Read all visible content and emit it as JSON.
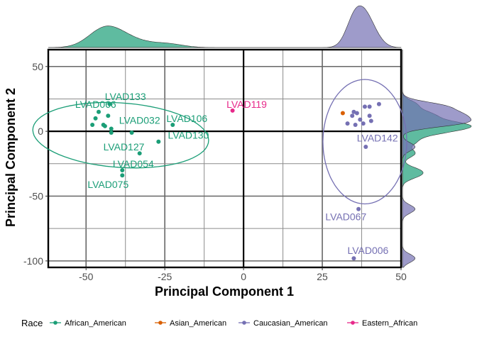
{
  "chart_data": {
    "type": "scatter",
    "xlabel": "Principal Component 1",
    "ylabel": "Principal Component 2",
    "xlim": [
      -62,
      50
    ],
    "ylim": [
      -105,
      63
    ],
    "xticks": [
      -50,
      -25,
      0,
      25,
      50
    ],
    "yticks": [
      50,
      0,
      -50,
      -100
    ],
    "xtick_labels": [
      "-50",
      "-25",
      "0",
      "25",
      "50"
    ],
    "ytick_labels": [
      "50",
      "0",
      "-50",
      "-100"
    ],
    "grid": true,
    "legend_position": "bottom",
    "legend_title": "Race",
    "series": [
      {
        "name": "African_American",
        "color": "#1B9E77",
        "points": [
          {
            "x": -48,
            "y": 5
          },
          {
            "x": -47,
            "y": 10
          },
          {
            "x": -46,
            "y": 15
          },
          {
            "x": -44.5,
            "y": 5
          },
          {
            "x": -44,
            "y": 4
          },
          {
            "x": -43,
            "y": 12
          },
          {
            "x": -42.5,
            "y": 21
          },
          {
            "x": -42,
            "y": 2
          },
          {
            "x": -42,
            "y": -1
          },
          {
            "x": -35.5,
            "y": -1
          },
          {
            "x": -33,
            "y": -17
          },
          {
            "x": -38.5,
            "y": -30
          },
          {
            "x": -38.5,
            "y": -34
          },
          {
            "x": -27,
            "y": -8
          },
          {
            "x": -22.5,
            "y": 5
          }
        ],
        "labels": [
          "LVAD066",
          "LVAD133",
          "LVAD032",
          "LVAD106",
          "LVAD130",
          "LVAD127",
          "LVAD054",
          "LVAD075"
        ]
      },
      {
        "name": "Asian_American",
        "color": "#D95F02",
        "points": [
          {
            "x": 31.5,
            "y": 14
          }
        ],
        "labels": []
      },
      {
        "name": "Caucasian_American",
        "color": "#7570B3",
        "points": [
          {
            "x": 33,
            "y": 6
          },
          {
            "x": 34.5,
            "y": 12
          },
          {
            "x": 35,
            "y": 15
          },
          {
            "x": 35.5,
            "y": 5
          },
          {
            "x": 36,
            "y": 14
          },
          {
            "x": 37,
            "y": 9
          },
          {
            "x": 38,
            "y": 6
          },
          {
            "x": 38.5,
            "y": 19
          },
          {
            "x": 40,
            "y": 12
          },
          {
            "x": 40,
            "y": 19
          },
          {
            "x": 40.5,
            "y": 8
          },
          {
            "x": 43,
            "y": 21
          },
          {
            "x": 38.8,
            "y": -12
          },
          {
            "x": 36.5,
            "y": -60
          },
          {
            "x": 35,
            "y": -98
          }
        ],
        "labels": [
          "LVAD142",
          "LVAD067",
          "LVAD006"
        ]
      },
      {
        "name": "Eastern_African",
        "color": "#E7298A",
        "points": [
          {
            "x": -3.5,
            "y": 16
          }
        ],
        "labels": [
          "LVAD119"
        ]
      }
    ]
  }
}
